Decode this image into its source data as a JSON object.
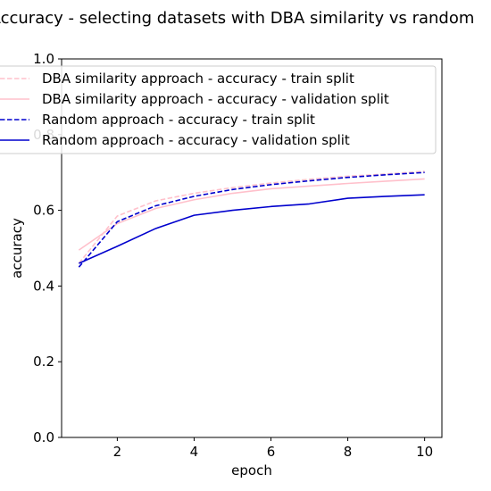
{
  "chart_data": {
    "type": "line",
    "title": "Accuracy - selecting datasets with DBA similarity vs random",
    "xlabel": "epoch",
    "ylabel": "accuracy",
    "xlim": [
      0.55,
      10.45
    ],
    "ylim": [
      0.0,
      1.0
    ],
    "xticks": [
      2,
      4,
      6,
      8,
      10
    ],
    "yticks": [
      0.0,
      0.2,
      0.4,
      0.6,
      0.8,
      1.0
    ],
    "xtick_labels": [
      "2",
      "4",
      "6",
      "8",
      "10"
    ],
    "ytick_labels": [
      "0.0",
      "0.2",
      "0.4",
      "0.6",
      "0.8",
      "1.0"
    ],
    "grid": false,
    "legend_position": "upper-left",
    "x": [
      1,
      2,
      3,
      4,
      5,
      6,
      7,
      8,
      9,
      10
    ],
    "series": [
      {
        "name": "DBA similarity approach - accuracy - train split",
        "color": "#ffc0cb",
        "style": "dashed",
        "values": [
          0.46,
          0.585,
          0.625,
          0.645,
          0.66,
          0.672,
          0.682,
          0.69,
          0.696,
          0.703
        ]
      },
      {
        "name": "DBA similarity approach - accuracy - validation split",
        "color": "#ffc0cb",
        "style": "solid",
        "values": [
          0.495,
          0.565,
          0.605,
          0.628,
          0.645,
          0.657,
          0.664,
          0.671,
          0.677,
          0.683
        ]
      },
      {
        "name": "Random approach - accuracy - train split",
        "color": "#0000cd",
        "style": "dashed",
        "values": [
          0.45,
          0.57,
          0.612,
          0.637,
          0.655,
          0.668,
          0.678,
          0.687,
          0.694,
          0.7
        ]
      },
      {
        "name": "Random approach - accuracy - validation split",
        "color": "#0000cd",
        "style": "solid",
        "values": [
          0.46,
          0.505,
          0.552,
          0.587,
          0.6,
          0.61,
          0.617,
          0.632,
          0.637,
          0.641
        ]
      }
    ]
  }
}
